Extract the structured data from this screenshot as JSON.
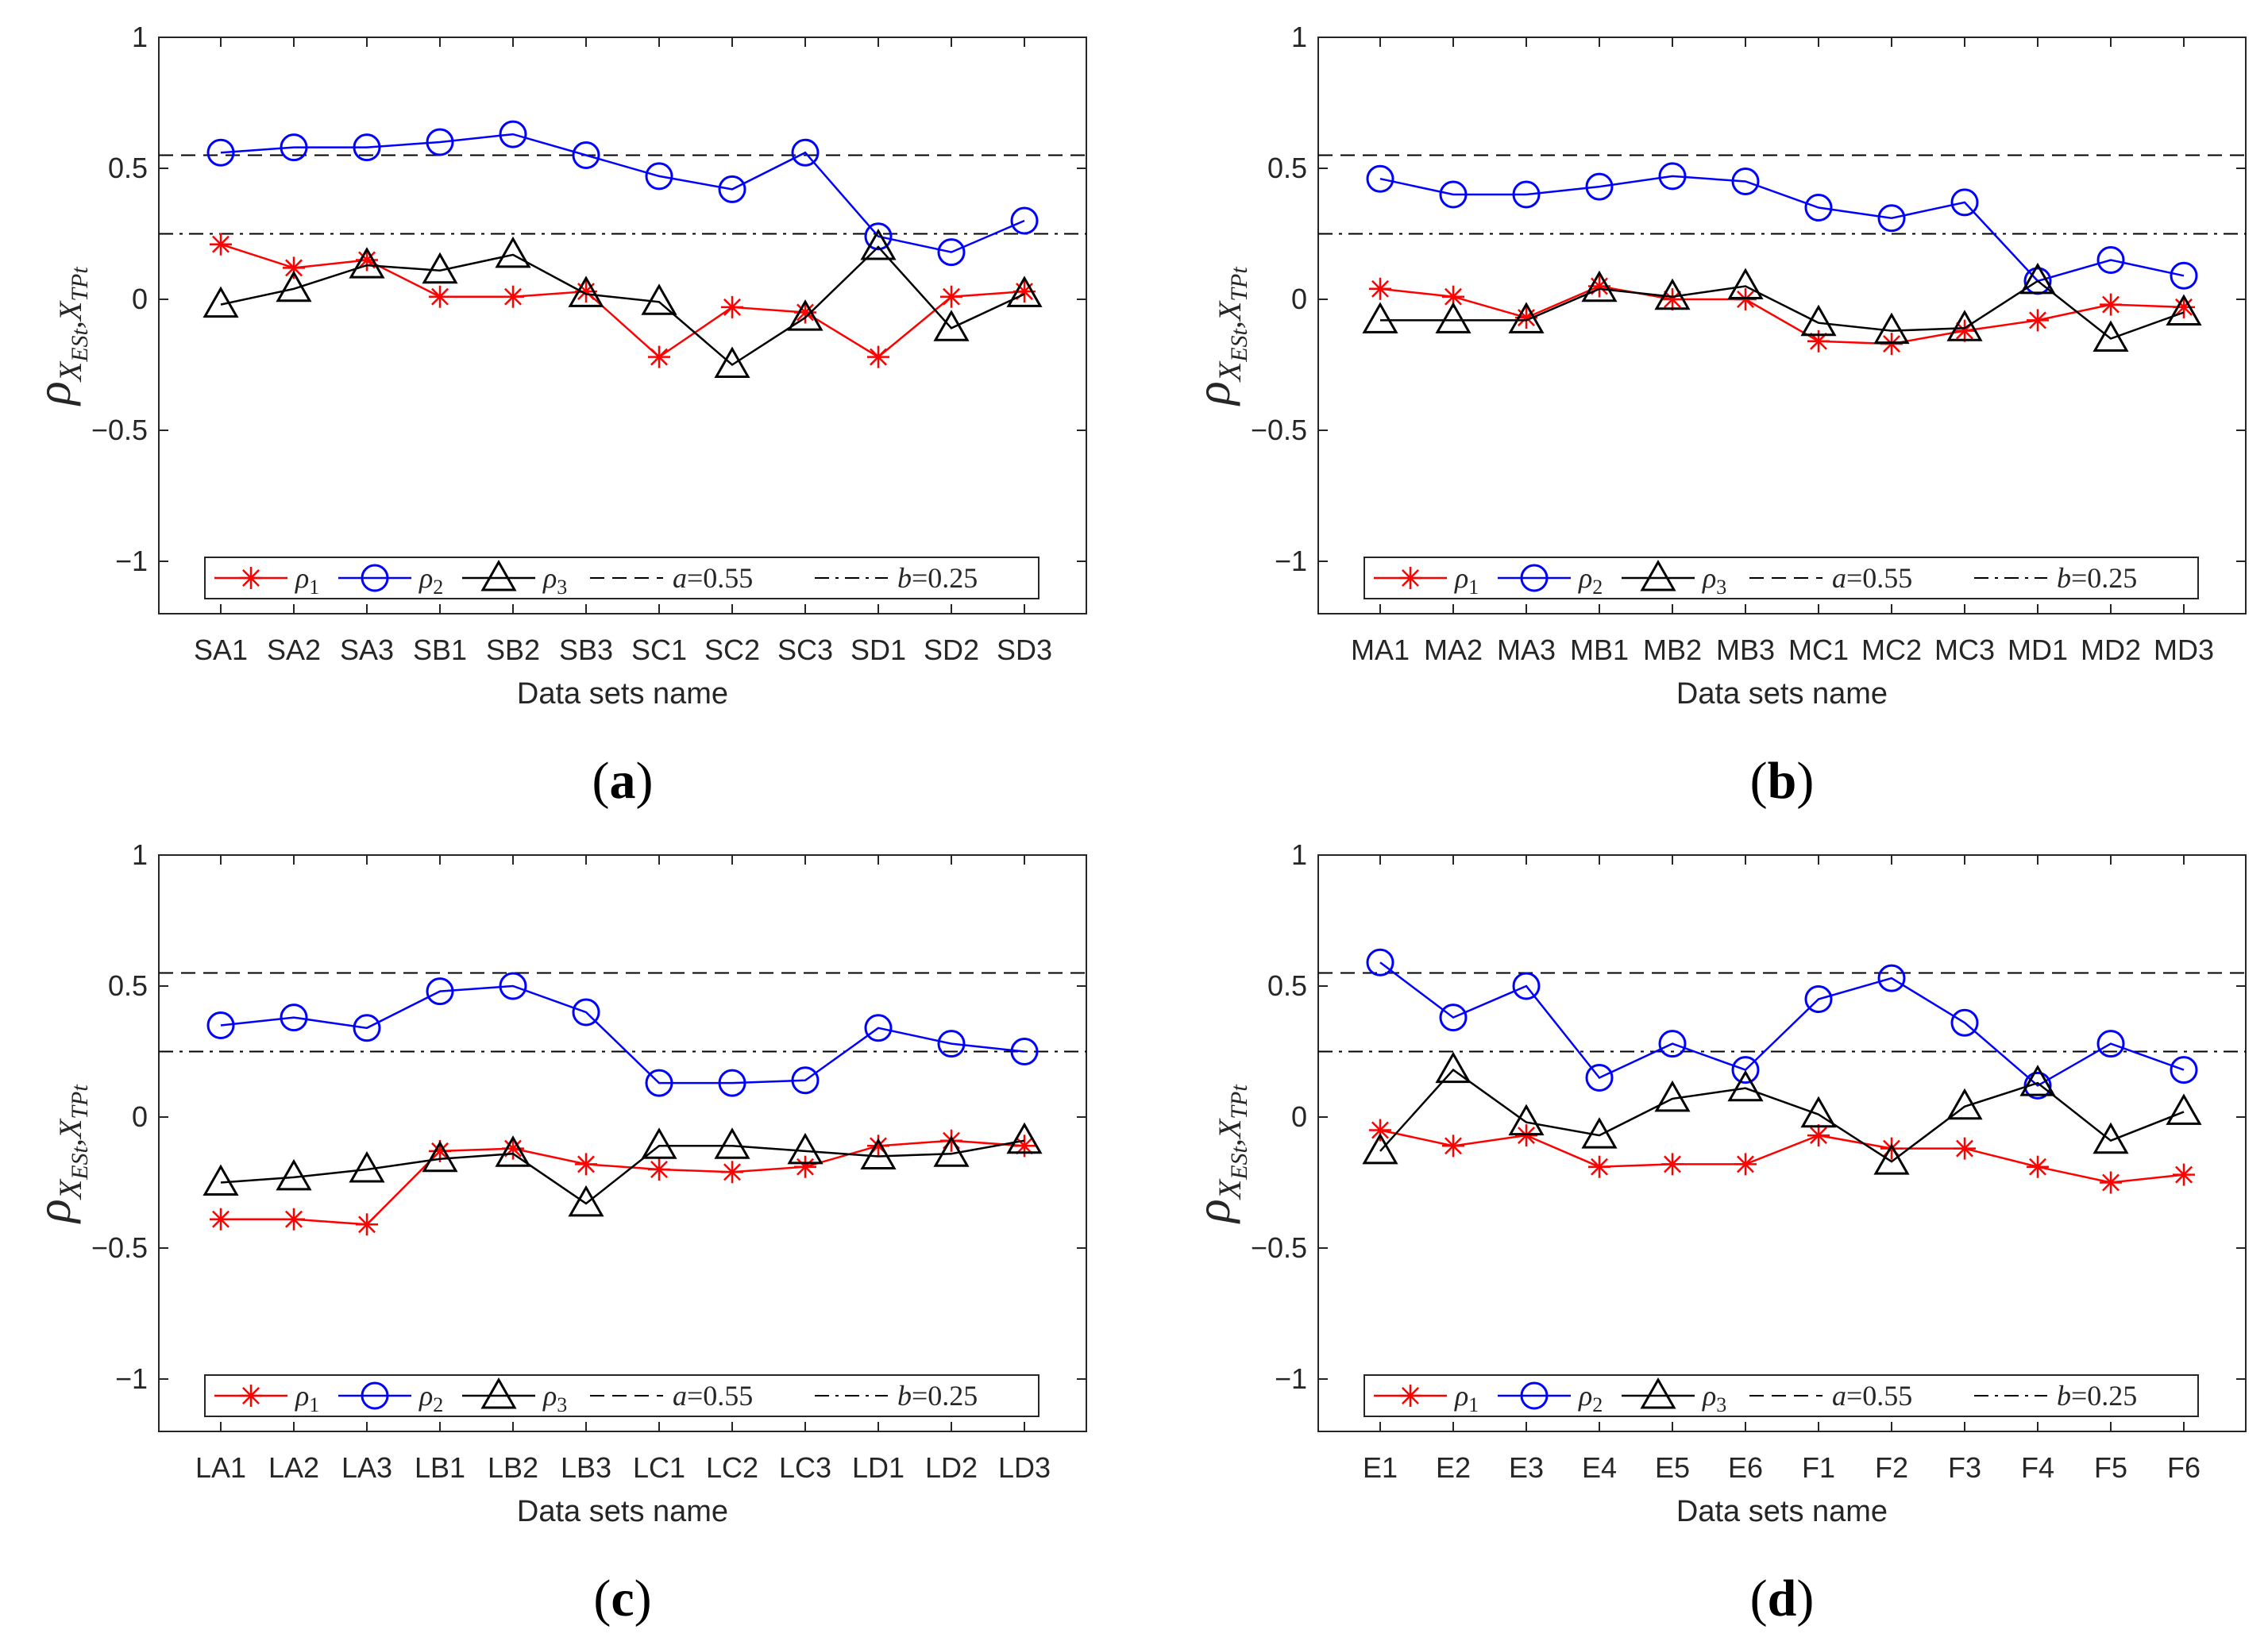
{
  "figure": {
    "panels_captions": [
      {
        "open": "(",
        "letter": "a",
        "close": ")"
      },
      {
        "open": "(",
        "letter": "b",
        "close": ")"
      },
      {
        "open": "(",
        "letter": "c",
        "close": ")"
      },
      {
        "open": "(",
        "letter": "d",
        "close": ")"
      }
    ],
    "ylabel": {
      "symbol": "ρ",
      "sub_x1": "X",
      "sub_est": "ESt",
      "sub_sep": ",",
      "sub_x2": "X",
      "sub_tpt": "TPt"
    },
    "xlabel": "Data sets name",
    "legend": {
      "rho": "ρ",
      "rho1_sub": "1",
      "rho2_sub": "2",
      "rho3_sub": "3",
      "a_label": "a",
      "a_value": "=0.55",
      "b_label": "b",
      "b_value": "=0.25"
    }
  },
  "colors": {
    "rho1": "#ff0000",
    "rho2": "#0000ff",
    "rho3": "#000000",
    "axes": "#262626"
  },
  "chart_data": [
    {
      "type": "line",
      "panel": "a",
      "categories": [
        "SA1",
        "SA2",
        "SA3",
        "SB1",
        "SB2",
        "SB3",
        "SC1",
        "SC2",
        "SC3",
        "SD1",
        "SD2",
        "SD3"
      ],
      "series": [
        {
          "name": "ρ1",
          "marker": "asterisk",
          "values": [
            0.21,
            0.12,
            0.15,
            0.01,
            0.01,
            0.03,
            -0.22,
            -0.03,
            -0.05,
            -0.22,
            0.01,
            0.03
          ]
        },
        {
          "name": "ρ2",
          "marker": "circle",
          "values": [
            0.56,
            0.58,
            0.58,
            0.6,
            0.63,
            0.55,
            0.47,
            0.42,
            0.56,
            0.24,
            0.18,
            0.3
          ]
        },
        {
          "name": "ρ3",
          "marker": "triangle",
          "values": [
            -0.02,
            0.04,
            0.13,
            0.11,
            0.17,
            0.02,
            -0.01,
            -0.25,
            -0.07,
            0.2,
            -0.11,
            0.02
          ]
        }
      ],
      "hlines": [
        {
          "name": "a",
          "y": 0.55,
          "style": "dashed"
        },
        {
          "name": "b",
          "y": 0.25,
          "style": "dashdot"
        }
      ],
      "ylim": [
        -1.2,
        1
      ],
      "yticks": [
        "1",
        "0.5",
        "0",
        "−0.5",
        "−1"
      ],
      "ytick_values": [
        1,
        0.5,
        0,
        -0.5,
        -1
      ],
      "xlabel": "Data sets name",
      "legend_position": "bottom"
    },
    {
      "type": "line",
      "panel": "b",
      "categories": [
        "MA1",
        "MA2",
        "MA3",
        "MB1",
        "MB2",
        "MB3",
        "MC1",
        "MC2",
        "MC3",
        "MD1",
        "MD2",
        "MD3"
      ],
      "series": [
        {
          "name": "ρ1",
          "marker": "asterisk",
          "values": [
            0.04,
            0.01,
            -0.07,
            0.05,
            0.0,
            0.0,
            -0.16,
            -0.17,
            -0.12,
            -0.08,
            -0.02,
            -0.03
          ]
        },
        {
          "name": "ρ2",
          "marker": "circle",
          "values": [
            0.46,
            0.4,
            0.4,
            0.43,
            0.47,
            0.45,
            0.35,
            0.31,
            0.37,
            0.07,
            0.15,
            0.09
          ]
        },
        {
          "name": "ρ3",
          "marker": "triangle",
          "values": [
            -0.08,
            -0.08,
            -0.08,
            0.04,
            0.01,
            0.05,
            -0.09,
            -0.12,
            -0.11,
            0.07,
            -0.15,
            -0.05
          ]
        }
      ],
      "hlines": [
        {
          "name": "a",
          "y": 0.55,
          "style": "dashed"
        },
        {
          "name": "b",
          "y": 0.25,
          "style": "dashdot"
        }
      ],
      "ylim": [
        -1.2,
        1
      ],
      "yticks": [
        "1",
        "0.5",
        "0",
        "−0.5",
        "−1"
      ],
      "ytick_values": [
        1,
        0.5,
        0,
        -0.5,
        -1
      ],
      "xlabel": "Data sets name",
      "legend_position": "bottom"
    },
    {
      "type": "line",
      "panel": "c",
      "categories": [
        "LA1",
        "LA2",
        "LA3",
        "LB1",
        "LB2",
        "LB3",
        "LC1",
        "LC2",
        "LC3",
        "LD1",
        "LD2",
        "LD3"
      ],
      "series": [
        {
          "name": "ρ1",
          "marker": "asterisk",
          "values": [
            -0.39,
            -0.39,
            -0.41,
            -0.13,
            -0.12,
            -0.18,
            -0.2,
            -0.21,
            -0.19,
            -0.11,
            -0.09,
            -0.11
          ]
        },
        {
          "name": "ρ2",
          "marker": "circle",
          "values": [
            0.35,
            0.38,
            0.34,
            0.48,
            0.5,
            0.4,
            0.13,
            0.13,
            0.14,
            0.34,
            0.28,
            0.25
          ]
        },
        {
          "name": "ρ3",
          "marker": "triangle",
          "values": [
            -0.25,
            -0.23,
            -0.2,
            -0.16,
            -0.14,
            -0.33,
            -0.11,
            -0.11,
            -0.13,
            -0.15,
            -0.14,
            -0.09
          ]
        }
      ],
      "hlines": [
        {
          "name": "a",
          "y": 0.55,
          "style": "dashed"
        },
        {
          "name": "b",
          "y": 0.25,
          "style": "dashdot"
        }
      ],
      "ylim": [
        -1.2,
        1
      ],
      "yticks": [
        "1",
        "0.5",
        "0",
        "−0.5",
        "−1"
      ],
      "ytick_values": [
        1,
        0.5,
        0,
        -0.5,
        -1
      ],
      "xlabel": "Data sets name",
      "legend_position": "bottom"
    },
    {
      "type": "line",
      "panel": "d",
      "categories": [
        "E1",
        "E2",
        "E3",
        "E4",
        "E5",
        "E6",
        "F1",
        "F2",
        "F3",
        "F4",
        "F5",
        "F6"
      ],
      "series": [
        {
          "name": "ρ1",
          "marker": "asterisk",
          "values": [
            -0.05,
            -0.11,
            -0.07,
            -0.19,
            -0.18,
            -0.18,
            -0.07,
            -0.12,
            -0.12,
            -0.19,
            -0.25,
            -0.22
          ]
        },
        {
          "name": "ρ2",
          "marker": "circle",
          "values": [
            0.59,
            0.38,
            0.5,
            0.15,
            0.28,
            0.18,
            0.45,
            0.53,
            0.36,
            0.12,
            0.28,
            0.18
          ]
        },
        {
          "name": "ρ3",
          "marker": "triangle",
          "values": [
            -0.13,
            0.18,
            -0.02,
            -0.07,
            0.07,
            0.11,
            0.01,
            -0.17,
            0.04,
            0.13,
            -0.09,
            0.02
          ]
        }
      ],
      "hlines": [
        {
          "name": "a",
          "y": 0.55,
          "style": "dashed"
        },
        {
          "name": "b",
          "y": 0.25,
          "style": "dashdot"
        }
      ],
      "ylim": [
        -1.2,
        1
      ],
      "yticks": [
        "1",
        "0.5",
        "0",
        "−0.5",
        "−1"
      ],
      "ytick_values": [
        1,
        0.5,
        0,
        -0.5,
        -1
      ],
      "xlabel": "Data sets name",
      "legend_position": "bottom"
    }
  ]
}
